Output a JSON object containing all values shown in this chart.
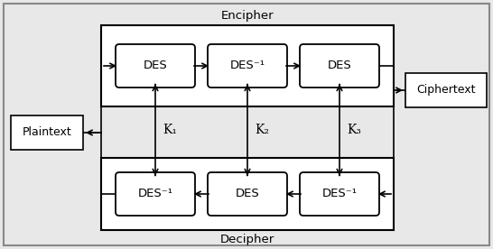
{
  "bg_color": "#e8e8e8",
  "box_bg": "#ffffff",
  "encipher_label": "Encipher",
  "decipher_label": "Decipher",
  "plaintext_label": "Plaintext",
  "ciphertext_label": "Ciphertext",
  "top_des_labels": [
    "DES",
    "DES⁻¹",
    "DES"
  ],
  "bottom_des_labels": [
    "DES⁻¹",
    "DES",
    "DES⁻¹"
  ],
  "key_labels": [
    "K₁",
    "K₂",
    "K₃"
  ]
}
